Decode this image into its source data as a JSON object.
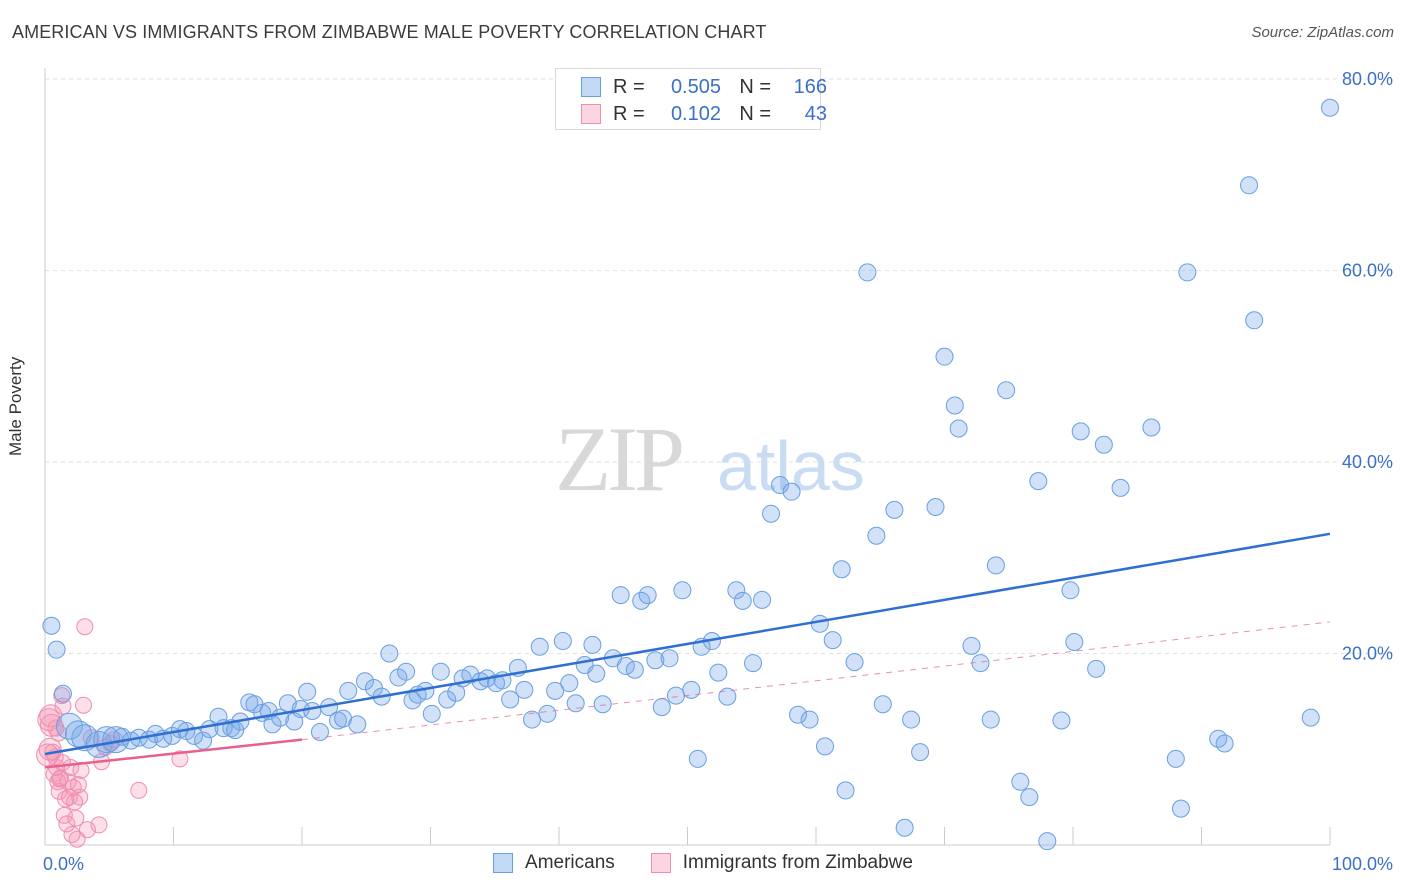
{
  "title": "AMERICAN VS IMMIGRANTS FROM ZIMBABWE MALE POVERTY CORRELATION CHART",
  "source": "Source: ZipAtlas.com",
  "watermark": {
    "zip": "ZIP",
    "atlas": "atlas"
  },
  "colors": {
    "americans_fill": "rgba(120,170,235,0.35)",
    "americans_stroke": "#6a9fe0",
    "americans_line": "#2f6fd0",
    "zimbabwe_fill": "rgba(245,150,180,0.30)",
    "zimbabwe_stroke": "#ee8fb0",
    "zimbabwe_line": "#e8608c",
    "tick_text": "#3b6fc8"
  },
  "legend": {
    "rows": [
      {
        "r_label": "R =",
        "r_value": "0.505",
        "n_label": "N =",
        "n_value": "166"
      },
      {
        "r_label": "R =",
        "r_value": "0.102",
        "n_label": "N =",
        "n_value": "43"
      }
    ]
  },
  "bottom_legend": {
    "americans": "Americans",
    "zimbabwe": "Immigrants from Zimbabwe"
  },
  "chart_data": {
    "type": "scatter",
    "title": "AMERICAN VS IMMIGRANTS FROM ZIMBABWE MALE POVERTY CORRELATION CHART",
    "xlabel": "",
    "ylabel": "Male Poverty",
    "xlim": [
      0,
      100
    ],
    "ylim": [
      0,
      80
    ],
    "x_tick_labels": [
      "0.0%",
      "100.0%"
    ],
    "y_ticks": [
      20,
      40,
      60,
      80
    ],
    "y_tick_labels": [
      "20.0%",
      "40.0%",
      "60.0%",
      "80.0%"
    ],
    "grid": true,
    "legend_position": "top-center",
    "series": [
      {
        "name": "Americans",
        "r": 0.505,
        "n": 166,
        "trend": {
          "x": [
            0,
            100
          ],
          "y": [
            9.5,
            32.5
          ]
        },
        "points": [
          [
            0.5,
            22.9
          ],
          [
            0.9,
            20.4
          ],
          [
            1.4,
            15.8
          ],
          [
            1.9,
            12.4
          ],
          [
            2.6,
            11.6
          ],
          [
            3.1,
            11.2
          ],
          [
            4.2,
            10.5
          ],
          [
            4.8,
            11.0
          ],
          [
            5.5,
            11.0
          ],
          [
            6.0,
            11.3
          ],
          [
            6.7,
            10.9
          ],
          [
            7.3,
            11.2
          ],
          [
            8.1,
            11.0
          ],
          [
            8.6,
            11.6
          ],
          [
            9.2,
            11.1
          ],
          [
            9.9,
            11.4
          ],
          [
            10.5,
            12.1
          ],
          [
            11.0,
            11.9
          ],
          [
            11.6,
            11.4
          ],
          [
            12.3,
            10.9
          ],
          [
            12.8,
            12.1
          ],
          [
            13.5,
            13.4
          ],
          [
            13.9,
            12.2
          ],
          [
            14.5,
            12.2
          ],
          [
            14.8,
            12.0
          ],
          [
            15.2,
            12.9
          ],
          [
            15.9,
            14.9
          ],
          [
            16.3,
            14.7
          ],
          [
            16.9,
            13.8
          ],
          [
            17.4,
            14.0
          ],
          [
            17.7,
            12.6
          ],
          [
            18.3,
            13.3
          ],
          [
            18.9,
            14.8
          ],
          [
            19.4,
            12.9
          ],
          [
            19.9,
            14.2
          ],
          [
            20.4,
            16.0
          ],
          [
            20.8,
            14.0
          ],
          [
            21.4,
            11.8
          ],
          [
            22.1,
            14.4
          ],
          [
            22.8,
            13.0
          ],
          [
            23.2,
            13.2
          ],
          [
            23.6,
            16.1
          ],
          [
            24.3,
            12.6
          ],
          [
            24.9,
            17.1
          ],
          [
            25.6,
            16.4
          ],
          [
            26.2,
            15.5
          ],
          [
            26.8,
            20.0
          ],
          [
            27.5,
            17.5
          ],
          [
            28.1,
            18.1
          ],
          [
            28.6,
            15.1
          ],
          [
            29.0,
            15.7
          ],
          [
            29.6,
            16.1
          ],
          [
            30.1,
            13.7
          ],
          [
            30.8,
            18.1
          ],
          [
            31.3,
            15.2
          ],
          [
            32.0,
            15.9
          ],
          [
            32.5,
            17.4
          ],
          [
            33.1,
            17.8
          ],
          [
            33.9,
            17.1
          ],
          [
            34.4,
            17.4
          ],
          [
            35.1,
            16.9
          ],
          [
            35.6,
            17.2
          ],
          [
            36.2,
            15.2
          ],
          [
            36.8,
            18.5
          ],
          [
            37.3,
            16.2
          ],
          [
            37.9,
            13.1
          ],
          [
            38.5,
            20.7
          ],
          [
            39.1,
            13.7
          ],
          [
            39.7,
            16.1
          ],
          [
            40.3,
            21.3
          ],
          [
            40.8,
            16.9
          ],
          [
            41.3,
            14.8
          ],
          [
            42.0,
            18.8
          ],
          [
            42.6,
            20.9
          ],
          [
            42.9,
            17.9
          ],
          [
            43.4,
            14.7
          ],
          [
            44.2,
            19.5
          ],
          [
            44.8,
            26.1
          ],
          [
            45.2,
            18.7
          ],
          [
            45.9,
            18.3
          ],
          [
            46.4,
            25.5
          ],
          [
            46.9,
            26.1
          ],
          [
            47.5,
            19.3
          ],
          [
            48.0,
            14.4
          ],
          [
            48.6,
            19.5
          ],
          [
            49.1,
            15.6
          ],
          [
            49.6,
            26.6
          ],
          [
            50.3,
            16.2
          ],
          [
            50.8,
            9.0
          ],
          [
            51.1,
            20.7
          ],
          [
            51.9,
            21.3
          ],
          [
            52.4,
            18.0
          ],
          [
            53.1,
            15.5
          ],
          [
            53.8,
            26.6
          ],
          [
            54.3,
            25.5
          ],
          [
            55.1,
            19.0
          ],
          [
            55.8,
            25.6
          ],
          [
            56.5,
            34.6
          ],
          [
            57.2,
            37.6
          ],
          [
            58.1,
            36.9
          ],
          [
            58.6,
            13.6
          ],
          [
            59.5,
            13.1
          ],
          [
            60.3,
            23.1
          ],
          [
            60.7,
            10.3
          ],
          [
            61.3,
            21.4
          ],
          [
            62.0,
            28.8
          ],
          [
            62.3,
            5.7
          ],
          [
            63.0,
            19.1
          ],
          [
            64.0,
            59.8
          ],
          [
            64.7,
            32.3
          ],
          [
            65.2,
            14.7
          ],
          [
            66.1,
            35.0
          ],
          [
            66.9,
            1.8
          ],
          [
            67.4,
            13.1
          ],
          [
            68.1,
            9.7
          ],
          [
            69.3,
            35.3
          ],
          [
            70.0,
            51.0
          ],
          [
            70.8,
            45.9
          ],
          [
            71.1,
            43.5
          ],
          [
            72.1,
            20.8
          ],
          [
            72.8,
            19.0
          ],
          [
            73.6,
            13.1
          ],
          [
            74.0,
            29.2
          ],
          [
            74.8,
            47.5
          ],
          [
            75.9,
            6.6
          ],
          [
            76.6,
            5.0
          ],
          [
            77.3,
            38.0
          ],
          [
            78.0,
            0.4
          ],
          [
            79.1,
            13.0
          ],
          [
            79.8,
            26.6
          ],
          [
            80.1,
            21.2
          ],
          [
            80.6,
            43.2
          ],
          [
            81.8,
            18.4
          ],
          [
            82.4,
            41.8
          ],
          [
            83.7,
            37.3
          ],
          [
            86.1,
            43.6
          ],
          [
            88.0,
            9.0
          ],
          [
            88.4,
            3.8
          ],
          [
            88.9,
            59.8
          ],
          [
            91.3,
            11.1
          ],
          [
            91.8,
            10.6
          ],
          [
            93.7,
            68.9
          ],
          [
            94.1,
            54.8
          ],
          [
            98.5,
            13.3
          ],
          [
            100.0,
            77.0
          ]
        ]
      },
      {
        "name": "Immigrants from Zimbabwe",
        "r": 0.102,
        "n": 43,
        "trend": {
          "x": [
            0,
            20
          ],
          "y": [
            8.1,
            11.0
          ]
        },
        "points": [
          [
            0.3,
            13.1
          ],
          [
            0.5,
            12.5
          ],
          [
            0.6,
            9.7
          ],
          [
            0.8,
            9.2
          ],
          [
            0.9,
            8.1
          ],
          [
            1.0,
            6.6
          ],
          [
            1.1,
            5.6
          ],
          [
            1.2,
            7.0
          ],
          [
            1.3,
            15.6
          ],
          [
            1.4,
            14.5
          ],
          [
            1.5,
            3.1
          ],
          [
            1.6,
            4.8
          ],
          [
            1.7,
            2.2
          ],
          [
            1.8,
            6.6
          ],
          [
            1.9,
            5.0
          ],
          [
            2.0,
            8.1
          ],
          [
            2.1,
            1.1
          ],
          [
            2.2,
            6.0
          ],
          [
            2.4,
            2.8
          ],
          [
            2.5,
            0.6
          ],
          [
            2.7,
            5.0
          ],
          [
            2.8,
            7.8
          ],
          [
            3.0,
            14.6
          ],
          [
            3.1,
            22.8
          ],
          [
            3.3,
            1.6
          ],
          [
            3.6,
            11.2
          ],
          [
            4.2,
            2.1
          ],
          [
            4.4,
            8.7
          ],
          [
            4.7,
            10.2
          ],
          [
            5.1,
            10.6
          ],
          [
            5.4,
            11.0
          ],
          [
            7.3,
            5.7
          ],
          [
            10.5,
            9.0
          ],
          [
            0.4,
            10.0
          ],
          [
            0.7,
            7.4
          ],
          [
            1.05,
            11.7
          ],
          [
            1.15,
            6.9
          ],
          [
            0.2,
            9.4
          ],
          [
            2.3,
            4.5
          ],
          [
            0.45,
            13.5
          ],
          [
            1.35,
            8.6
          ],
          [
            0.85,
            12.2
          ],
          [
            2.6,
            6.3
          ]
        ]
      }
    ]
  }
}
